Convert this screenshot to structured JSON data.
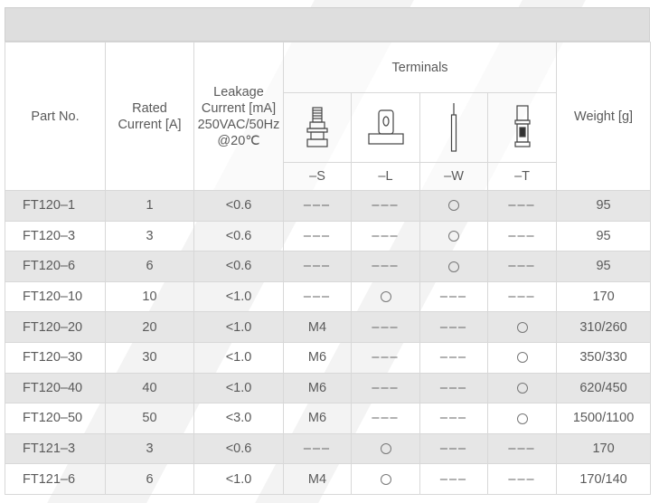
{
  "header": {
    "part_no": "Part No.",
    "rated_current": "Rated Current [A]",
    "leakage_lines": [
      "Leakage",
      "Current [mA]",
      "250VAC/50Hz",
      "@20℃"
    ],
    "terminals": "Terminals",
    "weight": "Weight [g]",
    "terminal_codes": [
      "–S",
      "–L",
      "–W",
      "–T"
    ],
    "terminal_icons": [
      "screw-stud-terminal-icon",
      "flat-tab-terminal-icon",
      "wire-lead-terminal-icon",
      "fast-on-terminal-icon"
    ]
  },
  "symbols": {
    "dash": "–––",
    "circle": "○"
  },
  "rows": [
    {
      "part": "FT120–1",
      "current": "1",
      "leakage": "<0.6",
      "s": "–––",
      "l": "–––",
      "w": "○",
      "t": "–––",
      "weight": "95"
    },
    {
      "part": "FT120–3",
      "current": "3",
      "leakage": "<0.6",
      "s": "–––",
      "l": "–––",
      "w": "○",
      "t": "–––",
      "weight": "95"
    },
    {
      "part": "FT120–6",
      "current": "6",
      "leakage": "<0.6",
      "s": "–––",
      "l": "–––",
      "w": "○",
      "t": "–––",
      "weight": "95"
    },
    {
      "part": "FT120–10",
      "current": "10",
      "leakage": "<1.0",
      "s": "–––",
      "l": "○",
      "w": "–––",
      "t": "–––",
      "weight": "170"
    },
    {
      "part": "FT120–20",
      "current": "20",
      "leakage": "<1.0",
      "s": "M4",
      "l": "–––",
      "w": "–––",
      "t": "○",
      "weight": "310/260"
    },
    {
      "part": "FT120–30",
      "current": "30",
      "leakage": "<1.0",
      "s": "M6",
      "l": "–––",
      "w": "–––",
      "t": "○",
      "weight": "350/330"
    },
    {
      "part": "FT120–40",
      "current": "40",
      "leakage": "<1.0",
      "s": "M6",
      "l": "–––",
      "w": "–––",
      "t": "○",
      "weight": "620/450"
    },
    {
      "part": "FT120–50",
      "current": "50",
      "leakage": "<3.0",
      "s": "M6",
      "l": "–––",
      "w": "–––",
      "t": "○",
      "weight": "1500/1100"
    },
    {
      "part": "FT121–3",
      "current": "3",
      "leakage": "<0.6",
      "s": "–––",
      "l": "○",
      "w": "–––",
      "t": "–––",
      "weight": "170"
    },
    {
      "part": "FT121–6",
      "current": "6",
      "leakage": "<1.0",
      "s": "M4",
      "l": "○",
      "w": "–––",
      "t": "–––",
      "weight": "170/140"
    }
  ]
}
